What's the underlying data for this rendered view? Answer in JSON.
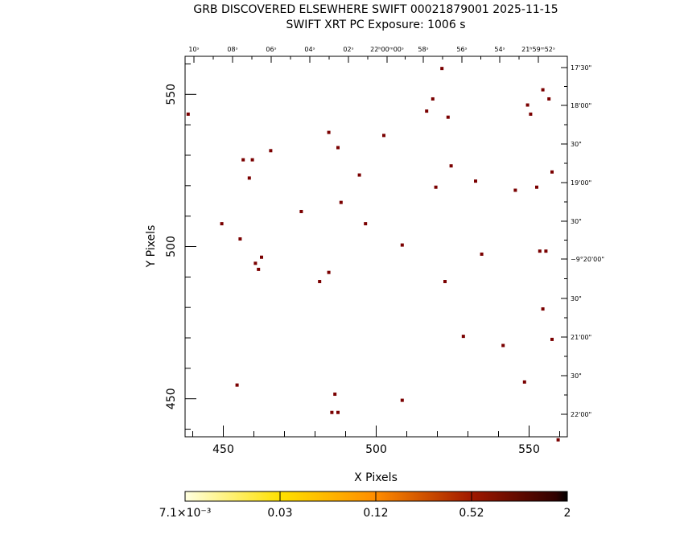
{
  "title_line1": "GRB DISCOVERED ELSEWHERE SWIFT 00021879001 2025-11-15",
  "title_line2": "SWIFT XRT PC Exposure:       1006 s",
  "chart_data": {
    "type": "scatter",
    "xlabel": "X Pixels",
    "ylabel": "Y Pixels",
    "xlim": [
      437.5,
      562.5
    ],
    "ylim": [
      437.5,
      562.5
    ],
    "x_ticks": [
      "450",
      "500",
      "550"
    ],
    "y_ticks": [
      "450",
      "500",
      "550"
    ],
    "top_ra_ticks": [
      "10ˢ",
      "08ˢ",
      "06ˢ",
      "04ˢ",
      "02ˢ",
      "22ʰ00ᵐ00ˢ",
      "58ˢ",
      "56ˢ",
      "54ˢ",
      "21ʰ59ᵐ52ˢ"
    ],
    "right_dec_ticks": [
      "17'30\"",
      "18'00\"",
      "30\"",
      "19'00\"",
      "30\"",
      "−9°20'00\"",
      "30\"",
      "21'00\"",
      "30\"",
      "22'00\""
    ],
    "colorbar_labels": [
      "7.1×10⁻³",
      "0.03",
      "0.12",
      "0.52",
      "2"
    ],
    "colorbar_colors": [
      "#ffffe0",
      "#ffd800",
      "#ff8a00",
      "#9a1a00",
      "#200000"
    ],
    "point_color": "#7a0000",
    "x": [
      438.5,
      449.5,
      454.5,
      455.5,
      456.5,
      458.5,
      459.5,
      460.5,
      461.5,
      462.5,
      465.5,
      475.5,
      481.5,
      484.5,
      484.5,
      485.5,
      486.5,
      487.5,
      487.5,
      488.5,
      494.5,
      496.5,
      502.5,
      508.5,
      508.5,
      516.5,
      518.5,
      519.5,
      521.5,
      522.5,
      523.5,
      524.5,
      528.5,
      532.5,
      534.5,
      541.5,
      545.5,
      548.5,
      549.5,
      550.5,
      552.5,
      553.5,
      554.5,
      554.5,
      555.5,
      556.5,
      557.5,
      557.5,
      559.5
    ],
    "y": [
      543.5,
      507.5,
      454.5,
      502.5,
      528.5,
      522.5,
      528.5,
      494.5,
      492.5,
      496.5,
      531.5,
      511.5,
      488.5,
      537.5,
      491.5,
      445.5,
      451.5,
      445.5,
      532.5,
      514.5,
      523.5,
      507.5,
      536.5,
      500.5,
      449.5,
      544.5,
      548.5,
      519.5,
      558.5,
      488.5,
      542.5,
      526.5,
      470.5,
      521.5,
      497.5,
      467.5,
      518.5,
      455.5,
      546.5,
      543.5,
      519.5,
      498.5,
      551.5,
      479.5,
      498.5,
      548.5,
      524.5,
      469.5,
      436.5
    ]
  }
}
